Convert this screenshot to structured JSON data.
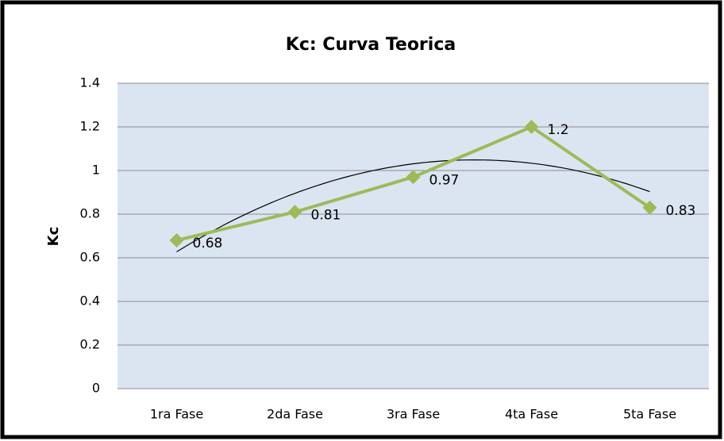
{
  "chart_data": {
    "type": "line",
    "title": "Kc: Curva Teorica",
    "y_label": "Kc",
    "categories": [
      "1ra Fase",
      "2da Fase",
      "3ra Fase",
      "4ta Fase",
      "5ta Fase"
    ],
    "series": [
      {
        "name": "Kc",
        "color": "#9bbb59",
        "values": [
          0.68,
          0.81,
          0.97,
          1.2,
          0.83
        ]
      }
    ],
    "ylim": [
      0,
      1.4
    ],
    "yticks": [
      0,
      0.2,
      0.4,
      0.6,
      0.8,
      1,
      1.2,
      1.4
    ],
    "grid": true,
    "trendline": {
      "type": "polynomial",
      "order": 2,
      "color": "#000000"
    },
    "data_labels": true
  }
}
